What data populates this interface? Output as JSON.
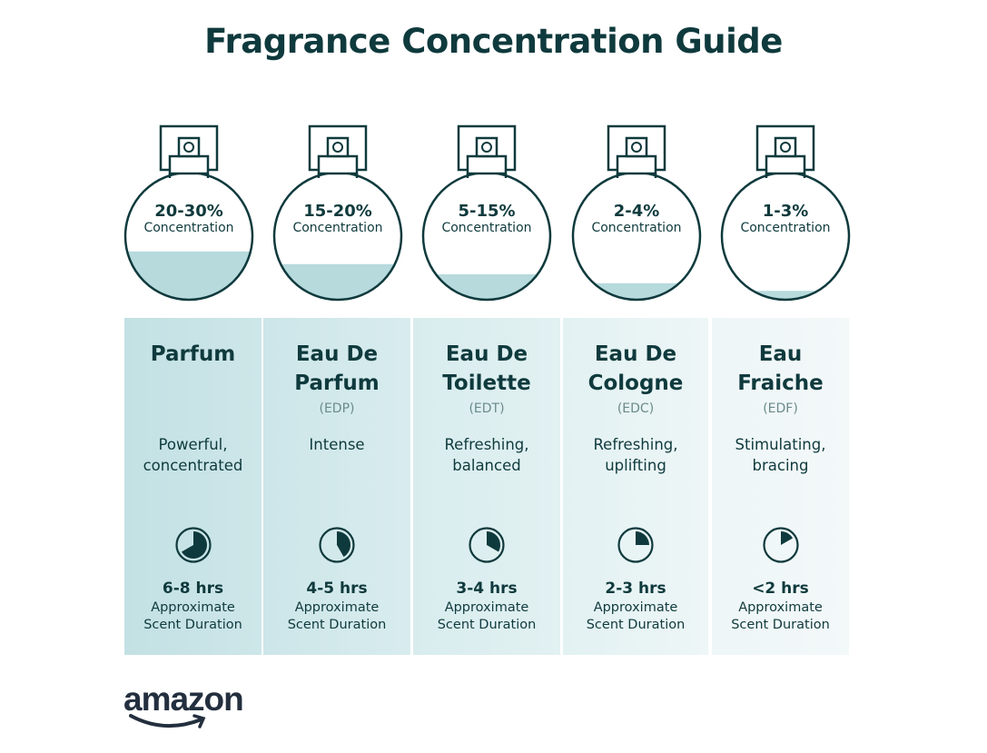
{
  "title": "Fragrance Concentration Guide",
  "colors": {
    "dark": "#0f3a3d",
    "liquid": "#b7dadd",
    "column_start": "#c3e1e4",
    "column_end": "#eef6f7"
  },
  "concentration_label": "Concentration",
  "approx_label_1": "Approximate",
  "approx_label_2": "Scent Duration",
  "types": [
    {
      "percent": "20-30%",
      "fill_level": 0.38,
      "name_line1": "Parfum",
      "name_line2": "",
      "abbr": "",
      "desc_line1": "Powerful,",
      "desc_line2": "concentrated",
      "duration": "6-8 hrs",
      "clock_fraction": 0.667
    },
    {
      "percent": "15-20%",
      "fill_level": 0.28,
      "name_line1": "Eau De",
      "name_line2": "Parfum",
      "abbr": "(EDP)",
      "desc_line1": "Intense",
      "desc_line2": "",
      "duration": "4-5 hrs",
      "clock_fraction": 0.417
    },
    {
      "percent": "5-15%",
      "fill_level": 0.2,
      "name_line1": "Eau De",
      "name_line2": "Toilette",
      "abbr": "(EDT)",
      "desc_line1": "Refreshing,",
      "desc_line2": "balanced",
      "duration": "3-4 hrs",
      "clock_fraction": 0.333
    },
    {
      "percent": "2-4%",
      "fill_level": 0.13,
      "name_line1": "Eau De",
      "name_line2": "Cologne",
      "abbr": "(EDC)",
      "desc_line1": "Refreshing,",
      "desc_line2": "uplifting",
      "duration": "2-3 hrs",
      "clock_fraction": 0.25
    },
    {
      "percent": "1-3%",
      "fill_level": 0.07,
      "name_line1": "Eau",
      "name_line2": "Fraiche",
      "abbr": "(EDF)",
      "desc_line1": "Stimulating,",
      "desc_line2": "bracing",
      "duration": "<2 hrs",
      "clock_fraction": 0.167
    }
  ],
  "logo": "amazon"
}
